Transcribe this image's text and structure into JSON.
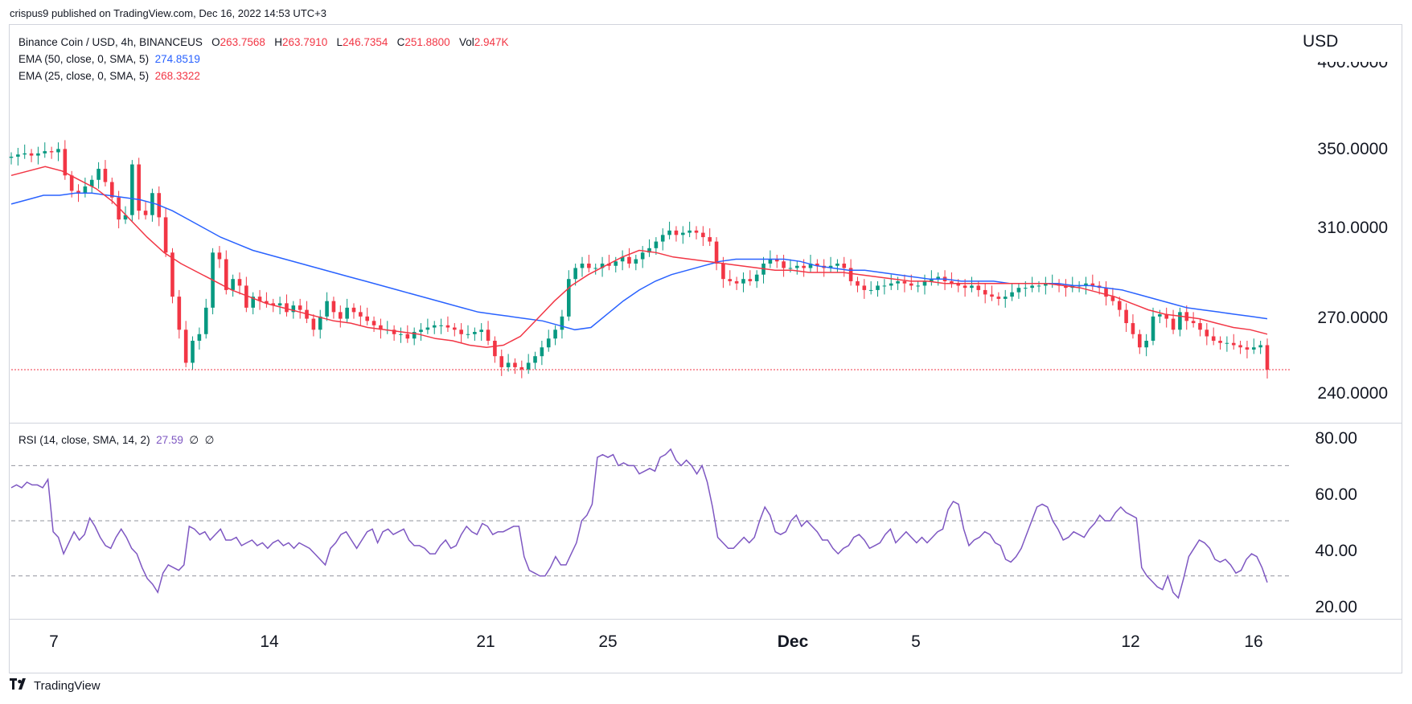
{
  "header": {
    "published_text": "crispus9 published on TradingView.com, Dec 16, 2022 14:53 UTC+3"
  },
  "legend": {
    "symbol": "Binance Coin / USD, 4h, BINANCEUS",
    "o_label": "O",
    "o_value": "263.7568",
    "h_label": "H",
    "h_value": "263.7910",
    "l_label": "L",
    "l_value": "246.7354",
    "c_label": "C",
    "c_value": "251.8800",
    "vol_label": "Vol",
    "vol_value": "2.947K",
    "ema50_label": "EMA (50, close, 0, SMA, 5)",
    "ema50_value": "274.8519",
    "ema25_label": "EMA (25, close, 0, SMA, 5)",
    "ema25_value": "268.3322",
    "rsi_label": "RSI (14, close, SMA, 14, 2)",
    "rsi_value": "27.59",
    "rsi_extra1": "∅",
    "rsi_extra2": "∅"
  },
  "axis": {
    "currency": "USD",
    "price_labels": [
      "400.0000",
      "350.0000",
      "310.0000",
      "270.0000",
      "240.0000"
    ],
    "rsi_labels": [
      "80.00",
      "60.00",
      "40.00",
      "20.00"
    ],
    "x_labels": [
      "7",
      "14",
      "21",
      "25",
      "Dec",
      "5",
      "12",
      "16"
    ]
  },
  "footer": {
    "brand": "TradingView"
  },
  "colors": {
    "up": "#089981",
    "down": "#f23645",
    "ema50": "#2962ff",
    "ema25": "#f23645",
    "rsi": "#7e57c2",
    "grid_dash": "#787b86",
    "last_price_line": "#f23645"
  },
  "chart_data": {
    "type": "candlestick",
    "symbol": "Binance Coin / USD",
    "timeframe": "4h",
    "x_labels": [
      "7",
      "14",
      "21",
      "25",
      "Dec",
      "5",
      "12",
      "16"
    ],
    "y_labels": [
      400,
      350,
      310,
      270,
      240
    ],
    "last_close": 251.88,
    "close_series": [
      348.5,
      349.5,
      350,
      349,
      350,
      351,
      350.5,
      352,
      340,
      333,
      332,
      335,
      338,
      343,
      337,
      330,
      320,
      322,
      345,
      324,
      322,
      332,
      321,
      305,
      285,
      270,
      255,
      265,
      268,
      280,
      305,
      302,
      288,
      293,
      290,
      280,
      285,
      283,
      282,
      281,
      282,
      278,
      281,
      279,
      275,
      270,
      276,
      283,
      278,
      275,
      280,
      278,
      276,
      274,
      272,
      270,
      270,
      268,
      268,
      266,
      269,
      270,
      271,
      272,
      272,
      271,
      270,
      268,
      268,
      269,
      270,
      265,
      258,
      253,
      255,
      253,
      252,
      255,
      258,
      262,
      266,
      270,
      276,
      293,
      298,
      300,
      298,
      298,
      300,
      299,
      301,
      303,
      300,
      302,
      305,
      307,
      310,
      313,
      315,
      313,
      314,
      315,
      314,
      312,
      310,
      300,
      293,
      292,
      291,
      293,
      292,
      295,
      300,
      302,
      301,
      298,
      298,
      299,
      298,
      300,
      299,
      298,
      299,
      300,
      298,
      292,
      290,
      288,
      288,
      290,
      290,
      291,
      292,
      291,
      290,
      290,
      292,
      293,
      294,
      292,
      291,
      290,
      289,
      290,
      288,
      286,
      285,
      284,
      285,
      287,
      289,
      289,
      290,
      290,
      291,
      291,
      290,
      289,
      290,
      290,
      291,
      290,
      289,
      285,
      283,
      279,
      273,
      268,
      262,
      265,
      276,
      277,
      275,
      270,
      278,
      274,
      273,
      270,
      267,
      265,
      264,
      264,
      263,
      262,
      261,
      262,
      263,
      251.88
    ],
    "ema50_series": [
      327,
      329,
      331,
      331,
      332,
      332,
      331,
      330,
      329,
      327,
      324,
      320,
      316,
      312,
      309,
      306,
      304,
      302,
      300,
      298,
      296,
      294,
      292,
      290,
      288,
      286,
      284,
      282,
      280,
      278,
      277,
      276,
      275,
      274,
      272,
      270,
      271,
      277,
      283,
      288,
      292,
      295,
      297,
      299,
      301,
      302,
      302,
      302,
      302,
      301,
      299,
      298,
      297,
      297,
      296,
      295,
      294,
      293,
      293,
      292,
      292,
      292,
      291,
      291,
      291,
      291,
      290,
      290,
      289,
      288,
      286,
      284,
      282,
      280,
      279,
      278,
      277,
      276,
      275
    ],
    "ema25_series": [
      340,
      342,
      344,
      342,
      338,
      334,
      328,
      320,
      312,
      305,
      300,
      296,
      292,
      288,
      285,
      282,
      280,
      278,
      276,
      274,
      273,
      271,
      270,
      269,
      268,
      266,
      265,
      263,
      262,
      263,
      267,
      275,
      283,
      290,
      295,
      299,
      303,
      306,
      305,
      303,
      302,
      301,
      300,
      299,
      298,
      297,
      297,
      296,
      296,
      296,
      295,
      294,
      293,
      292,
      292,
      291,
      291,
      291,
      291,
      291,
      291,
      291,
      290,
      289,
      287,
      285,
      282,
      279,
      277,
      276,
      275,
      273,
      271,
      270,
      268
    ],
    "rsi_series": [
      62,
      63,
      62,
      64,
      63,
      63,
      62,
      65,
      46,
      44,
      38,
      42,
      46,
      43,
      45,
      51,
      48,
      44,
      41,
      40,
      44,
      47,
      44,
      40,
      38,
      33,
      29,
      27,
      24,
      31,
      34,
      33,
      32,
      34,
      48,
      47,
      45,
      46,
      43,
      45,
      47,
      43,
      43,
      44,
      41,
      42,
      43,
      41,
      42,
      40,
      42,
      43,
      41,
      42,
      40,
      42,
      41,
      40,
      38,
      36,
      34,
      40,
      42,
      45,
      46,
      43,
      40,
      43,
      46,
      47,
      42,
      46,
      47,
      45,
      46,
      47,
      43,
      41,
      41,
      40,
      38,
      38,
      41,
      43,
      40,
      41,
      45,
      48,
      46,
      45,
      49,
      48,
      45,
      46,
      46,
      47,
      48,
      48,
      37,
      32,
      31,
      30,
      30,
      33,
      37,
      34,
      34,
      38,
      42,
      50,
      52,
      56,
      73,
      74,
      73,
      74,
      70,
      71,
      70,
      70,
      67,
      68,
      69,
      68,
      73,
      74,
      76,
      72,
      70,
      72,
      70,
      67,
      70,
      64,
      55,
      44,
      42,
      40,
      40,
      42,
      44,
      42,
      44,
      50,
      55,
      52,
      46,
      45,
      46,
      50,
      52,
      48,
      50,
      48,
      46,
      43,
      43,
      40,
      38,
      40,
      41,
      44,
      45,
      43,
      40,
      41,
      42,
      45,
      47,
      42,
      44,
      46,
      44,
      42,
      44,
      42,
      44,
      46,
      47,
      54,
      57,
      56,
      47,
      41,
      43,
      44,
      46,
      45,
      42,
      41,
      36,
      35,
      37,
      40,
      45,
      50,
      55,
      56,
      55,
      50,
      47,
      43,
      44,
      46,
      45,
      44,
      47,
      49,
      52,
      50,
      50,
      53,
      55,
      53,
      52,
      51,
      33,
      30,
      28,
      26,
      25,
      30,
      24,
      22,
      29,
      37,
      40,
      43,
      42,
      40,
      36,
      35,
      36,
      34,
      31,
      32,
      36,
      38,
      37,
      33,
      27.59
    ],
    "rsi_levels": [
      70,
      50,
      30
    ],
    "rsi_range": [
      15,
      85
    ],
    "price_range": [
      230,
      405
    ]
  }
}
